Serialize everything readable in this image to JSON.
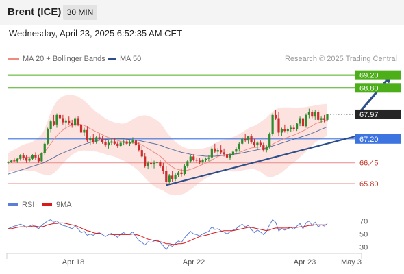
{
  "header": {
    "instrument": "Brent (ICE)",
    "timeframe": "30 MIN",
    "datetime": "Wednesday, April 23, 2025 6:52:35 AM CET"
  },
  "legend": {
    "ma20_label": "MA 20 + Bollinger Bands",
    "ma20_color": "#f08a80",
    "ma50_label": "MA 50",
    "ma50_color": "#2d4e8a"
  },
  "credit": "Research © 2025 Trading Central",
  "rsi_legend": {
    "rsi_label": "RSI",
    "rsi_color": "#5b7fd6",
    "ma_label": "9MA",
    "ma_color": "#d91a1a"
  },
  "colors": {
    "resistance": "#4caf1a",
    "pivot": "#3d74e0",
    "support": "#e88a8a",
    "trendline": "#2d4e8a",
    "candle_up": "#2e8b2e",
    "candle_down": "#cc2d2d"
  },
  "chart_data": [
    {
      "type": "candlestick",
      "title": "",
      "x_ticks": [
        "Apr 18",
        "Apr 22",
        "Apr 23",
        "May 3"
      ],
      "y_range": [
        65.5,
        69.45
      ],
      "key_levels": [
        {
          "value": 69.2,
          "label": "69.20",
          "kind": "resistance"
        },
        {
          "value": 68.8,
          "label": "68.80",
          "kind": "resistance"
        },
        {
          "value": 67.97,
          "label": "67.97",
          "kind": "last_price"
        },
        {
          "value": 67.2,
          "label": "67.20",
          "kind": "pivot"
        },
        {
          "value": 66.45,
          "label": "66.45",
          "kind": "support"
        },
        {
          "value": 65.8,
          "label": "65.80",
          "kind": "support"
        }
      ],
      "candles": [
        [
          66.45,
          66.5,
          66.4,
          66.48
        ],
        [
          66.48,
          66.55,
          66.45,
          66.52
        ],
        [
          66.52,
          66.6,
          66.48,
          66.5
        ],
        [
          66.5,
          66.6,
          66.45,
          66.58
        ],
        [
          66.58,
          66.72,
          66.52,
          66.68
        ],
        [
          66.68,
          66.75,
          66.55,
          66.6
        ],
        [
          66.6,
          66.68,
          66.45,
          66.52
        ],
        [
          66.52,
          66.62,
          66.48,
          66.58
        ],
        [
          66.58,
          66.72,
          66.55,
          66.7
        ],
        [
          66.7,
          66.78,
          66.55,
          66.62
        ],
        [
          66.62,
          66.7,
          66.45,
          66.5
        ],
        [
          66.5,
          66.78,
          66.48,
          66.75
        ],
        [
          66.75,
          67.1,
          66.7,
          67.05
        ],
        [
          67.05,
          67.55,
          67.0,
          67.5
        ],
        [
          67.5,
          67.8,
          67.4,
          67.75
        ],
        [
          67.75,
          67.95,
          67.6,
          67.65
        ],
        [
          67.65,
          68.0,
          67.55,
          67.95
        ],
        [
          67.95,
          68.05,
          67.75,
          67.85
        ],
        [
          67.85,
          67.95,
          67.65,
          67.72
        ],
        [
          67.72,
          67.85,
          67.55,
          67.78
        ],
        [
          67.78,
          67.9,
          67.65,
          67.7
        ],
        [
          67.7,
          67.8,
          67.55,
          67.62
        ],
        [
          67.62,
          67.9,
          67.58,
          67.85
        ],
        [
          67.85,
          67.92,
          67.6,
          67.65
        ],
        [
          67.65,
          67.75,
          67.35,
          67.4
        ],
        [
          67.4,
          67.55,
          67.3,
          67.48
        ],
        [
          67.48,
          67.6,
          67.1,
          67.15
        ],
        [
          67.15,
          67.3,
          67.0,
          67.22
        ],
        [
          67.22,
          67.35,
          67.05,
          67.1
        ],
        [
          67.1,
          67.3,
          67.05,
          67.25
        ],
        [
          67.25,
          67.35,
          67.15,
          67.2
        ],
        [
          67.2,
          67.3,
          67.05,
          67.1
        ],
        [
          67.1,
          67.2,
          66.95,
          67.0
        ],
        [
          67.0,
          67.15,
          66.9,
          67.08
        ],
        [
          67.08,
          67.2,
          67.0,
          67.12
        ],
        [
          67.12,
          67.22,
          67.02,
          67.05
        ],
        [
          67.05,
          67.12,
          66.92,
          66.98
        ],
        [
          66.98,
          67.12,
          66.95,
          67.08
        ],
        [
          67.08,
          67.18,
          67.0,
          67.12
        ],
        [
          67.12,
          67.2,
          67.02,
          67.05
        ],
        [
          67.05,
          67.15,
          66.98,
          67.1
        ],
        [
          67.1,
          67.25,
          67.05,
          67.15
        ],
        [
          67.15,
          67.2,
          66.95,
          67.0
        ],
        [
          67.0,
          67.1,
          66.8,
          66.85
        ],
        [
          66.85,
          66.98,
          66.6,
          66.65
        ],
        [
          66.65,
          66.75,
          66.3,
          66.35
        ],
        [
          66.35,
          66.5,
          66.25,
          66.45
        ],
        [
          66.45,
          66.6,
          66.3,
          66.4
        ],
        [
          66.4,
          66.52,
          66.28,
          66.45
        ],
        [
          66.45,
          66.55,
          66.35,
          66.48
        ],
        [
          66.48,
          66.55,
          66.3,
          66.35
        ],
        [
          66.35,
          66.45,
          66.1,
          66.2
        ],
        [
          66.2,
          66.35,
          65.75,
          65.85
        ],
        [
          65.85,
          66.1,
          65.78,
          66.05
        ],
        [
          66.05,
          66.2,
          65.85,
          65.95
        ],
        [
          65.95,
          66.12,
          65.88,
          66.08
        ],
        [
          66.08,
          66.2,
          66.0,
          66.15
        ],
        [
          66.15,
          66.28,
          66.02,
          66.1
        ],
        [
          66.1,
          66.4,
          66.05,
          66.35
        ],
        [
          66.35,
          66.55,
          66.3,
          66.5
        ],
        [
          66.5,
          66.7,
          66.45,
          66.65
        ],
        [
          66.65,
          66.72,
          66.5,
          66.55
        ],
        [
          66.55,
          66.62,
          66.45,
          66.52
        ],
        [
          66.52,
          66.6,
          66.4,
          66.48
        ],
        [
          66.48,
          66.58,
          66.42,
          66.55
        ],
        [
          66.55,
          66.62,
          66.48,
          66.58
        ],
        [
          66.58,
          66.7,
          66.5,
          66.62
        ],
        [
          66.62,
          66.95,
          66.55,
          66.9
        ],
        [
          66.9,
          67.05,
          66.75,
          66.8
        ],
        [
          66.8,
          66.92,
          66.7,
          66.85
        ],
        [
          66.85,
          67.0,
          66.72,
          66.78
        ],
        [
          66.78,
          66.9,
          66.65,
          66.72
        ],
        [
          66.72,
          66.8,
          66.55,
          66.62
        ],
        [
          66.62,
          66.75,
          66.55,
          66.7
        ],
        [
          66.7,
          66.85,
          66.62,
          66.8
        ],
        [
          66.8,
          66.95,
          66.72,
          66.88
        ],
        [
          66.88,
          67.1,
          66.8,
          67.05
        ],
        [
          67.05,
          67.25,
          67.0,
          67.2
        ],
        [
          67.2,
          67.35,
          67.1,
          67.15
        ],
        [
          67.15,
          67.3,
          67.05,
          67.28
        ],
        [
          67.28,
          67.35,
          67.05,
          67.1
        ],
        [
          67.1,
          67.2,
          66.95,
          67.0
        ],
        [
          67.0,
          67.12,
          66.88,
          67.08
        ],
        [
          67.08,
          67.15,
          66.95,
          67.0
        ],
        [
          67.0,
          67.08,
          66.8,
          66.85
        ],
        [
          66.85,
          67.0,
          66.78,
          66.95
        ],
        [
          66.95,
          67.4,
          66.9,
          67.35
        ],
        [
          67.35,
          68.0,
          67.3,
          67.95
        ],
        [
          67.95,
          68.1,
          67.8,
          67.85
        ],
        [
          67.85,
          68.05,
          67.3,
          67.4
        ],
        [
          67.4,
          67.55,
          67.3,
          67.5
        ],
        [
          67.5,
          67.65,
          67.4,
          67.45
        ],
        [
          67.45,
          67.55,
          67.35,
          67.5
        ],
        [
          67.5,
          67.62,
          67.42,
          67.55
        ],
        [
          67.55,
          67.65,
          67.45,
          67.5
        ],
        [
          67.5,
          67.7,
          67.45,
          67.68
        ],
        [
          67.68,
          67.9,
          67.6,
          67.85
        ],
        [
          67.85,
          67.95,
          67.55,
          67.6
        ],
        [
          67.6,
          68.0,
          67.55,
          67.95
        ],
        [
          67.95,
          68.15,
          67.85,
          68.05
        ],
        [
          68.05,
          68.12,
          67.85,
          67.9
        ],
        [
          67.9,
          68.1,
          67.8,
          68.05
        ],
        [
          68.05,
          68.1,
          67.75,
          67.8
        ],
        [
          67.8,
          67.9,
          67.7,
          67.85
        ],
        [
          67.85,
          67.95,
          67.72,
          67.8
        ],
        [
          67.8,
          67.98,
          67.75,
          67.97
        ]
      ],
      "ma20": [
        66.45,
        66.5,
        66.52,
        66.55,
        66.6,
        66.62,
        66.63,
        66.63,
        66.65,
        66.68,
        66.7,
        66.72,
        66.8,
        66.92,
        67.05,
        67.18,
        67.3,
        67.4,
        67.48,
        67.55,
        67.6,
        67.64,
        67.66,
        67.67,
        67.65,
        67.62,
        67.57,
        67.52,
        67.47,
        67.42,
        67.38,
        67.33,
        67.28,
        67.24,
        67.21,
        67.18,
        67.15,
        67.12,
        67.1,
        67.09,
        67.08,
        67.08,
        67.07,
        67.05,
        67.01,
        66.96,
        66.9,
        66.84,
        66.78,
        66.72,
        66.66,
        66.58,
        66.47,
        66.39,
        66.32,
        66.27,
        66.24,
        66.22,
        66.21,
        66.22,
        66.25,
        66.28,
        66.32,
        66.36,
        66.4,
        66.44,
        66.48,
        66.54,
        66.6,
        66.65,
        66.68,
        66.7,
        66.7,
        66.71,
        66.72,
        66.74,
        66.77,
        66.81,
        66.85,
        66.89,
        66.92,
        66.93,
        66.94,
        66.95,
        66.95,
        66.95,
        66.98,
        67.03,
        67.09,
        67.13,
        67.17,
        67.21,
        67.25,
        67.29,
        67.32,
        67.36,
        67.41,
        67.45,
        67.5,
        67.56,
        67.61,
        67.67,
        67.71,
        67.74,
        67.77,
        67.8
      ],
      "ma50": [
        66.1,
        66.13,
        66.16,
        66.19,
        66.22,
        66.25,
        66.28,
        66.31,
        66.34,
        66.37,
        66.4,
        66.43,
        66.47,
        66.52,
        66.57,
        66.62,
        66.67,
        66.72,
        66.76,
        66.8,
        66.84,
        66.88,
        66.92,
        66.96,
        67.0,
        67.03,
        67.06,
        67.09,
        67.12,
        67.14,
        67.16,
        67.17,
        67.18,
        67.19,
        67.2,
        67.2,
        67.2,
        67.2,
        67.2,
        67.19,
        67.18,
        67.17,
        67.16,
        67.15,
        67.13,
        67.11,
        67.09,
        67.07,
        67.05,
        67.03,
        67.0,
        66.97,
        66.93,
        66.9,
        66.87,
        66.84,
        66.81,
        66.78,
        66.76,
        66.74,
        66.72,
        66.7,
        66.69,
        66.68,
        66.67,
        66.66,
        66.66,
        66.66,
        66.66,
        66.67,
        66.68,
        66.69,
        66.7,
        66.71,
        66.72,
        66.73,
        66.74,
        66.76,
        66.78,
        66.8,
        66.82,
        66.84,
        66.86,
        66.88,
        66.9,
        66.92,
        66.95,
        66.98,
        67.01,
        67.04,
        67.07,
        67.1,
        67.13,
        67.16,
        67.19,
        67.22,
        67.25,
        67.28,
        67.31,
        67.34,
        67.38,
        67.42,
        67.46,
        67.5,
        67.54,
        67.58
      ],
      "bollinger_width": [
        0.3,
        0.32,
        0.34,
        0.36,
        0.38,
        0.4,
        0.42,
        0.44,
        0.46,
        0.5,
        0.55,
        0.62,
        0.72,
        0.85,
        0.98,
        1.05,
        1.08,
        1.08,
        1.06,
        1.02,
        0.98,
        0.94,
        0.9,
        0.86,
        0.82,
        0.78,
        0.74,
        0.7,
        0.66,
        0.62,
        0.6,
        0.58,
        0.56,
        0.55,
        0.54,
        0.54,
        0.55,
        0.56,
        0.58,
        0.62,
        0.68,
        0.74,
        0.8,
        0.86,
        0.92,
        0.98,
        1.02,
        1.05,
        1.06,
        1.06,
        1.04,
        1.0,
        0.96,
        0.92,
        0.88,
        0.84,
        0.8,
        0.76,
        0.72,
        0.68,
        0.64,
        0.6,
        0.56,
        0.52,
        0.5,
        0.48,
        0.47,
        0.46,
        0.46,
        0.46,
        0.47,
        0.48,
        0.5,
        0.52,
        0.54,
        0.56,
        0.58,
        0.6,
        0.62,
        0.64,
        0.66,
        0.68,
        0.72,
        0.78,
        0.85,
        0.92,
        0.98,
        1.02,
        1.04,
        1.04,
        1.02,
        0.98,
        0.94,
        0.9,
        0.86,
        0.82,
        0.78,
        0.74,
        0.7,
        0.66,
        0.62,
        0.58,
        0.56,
        0.54,
        0.52,
        0.5
      ],
      "trendline": [
        [
          52,
          65.75
        ],
        [
          115,
          67.3
        ]
      ],
      "forecast_arrow": [
        [
          115,
          67.97
        ],
        [
          126,
          69.2
        ]
      ]
    },
    {
      "type": "line",
      "title": "",
      "y_ticks": [
        70,
        50,
        30
      ],
      "y_range": [
        20,
        80
      ],
      "series": [
        {
          "name": "RSI",
          "values": [
            58,
            60,
            62,
            63,
            65,
            63,
            60,
            62,
            64,
            61,
            58,
            63,
            67,
            70,
            72,
            68,
            70,
            66,
            63,
            62,
            60,
            58,
            62,
            58,
            52,
            54,
            48,
            50,
            48,
            51,
            52,
            49,
            46,
            49,
            51,
            48,
            45,
            50,
            52,
            49,
            50,
            53,
            46,
            40,
            37,
            33,
            38,
            37,
            39,
            41,
            37,
            32,
            26,
            33,
            31,
            35,
            39,
            37,
            44,
            49,
            54,
            50,
            49,
            47,
            50,
            52,
            54,
            61,
            57,
            58,
            55,
            53,
            50,
            53,
            56,
            58,
            62,
            65,
            61,
            63,
            57,
            52,
            56,
            53,
            49,
            54,
            64,
            72,
            68,
            55,
            58,
            56,
            58,
            60,
            57,
            62,
            66,
            58,
            67,
            70,
            63,
            68,
            61,
            64,
            62,
            66
          ]
        },
        {
          "name": "9MA",
          "values": [
            58,
            58,
            59,
            60,
            61,
            61,
            61,
            61,
            62,
            62,
            61,
            61,
            62,
            64,
            65,
            66,
            66,
            67,
            67,
            66,
            65,
            64,
            63,
            61,
            59,
            57,
            55,
            54,
            52,
            51,
            51,
            50,
            50,
            50,
            49,
            49,
            49,
            49,
            49,
            49,
            49,
            50,
            49,
            48,
            46,
            44,
            42,
            41,
            40,
            39,
            38,
            37,
            35,
            35,
            34,
            34,
            35,
            35,
            36,
            38,
            40,
            42,
            44,
            46,
            47,
            48,
            49,
            51,
            52,
            53,
            54,
            55,
            55,
            55,
            55,
            56,
            57,
            58,
            59,
            60,
            60,
            59,
            58,
            57,
            56,
            55,
            56,
            58,
            59,
            59,
            59,
            59,
            59,
            60,
            60,
            60,
            61,
            61,
            62,
            63,
            63,
            64,
            64,
            64,
            64,
            64
          ]
        }
      ]
    }
  ]
}
